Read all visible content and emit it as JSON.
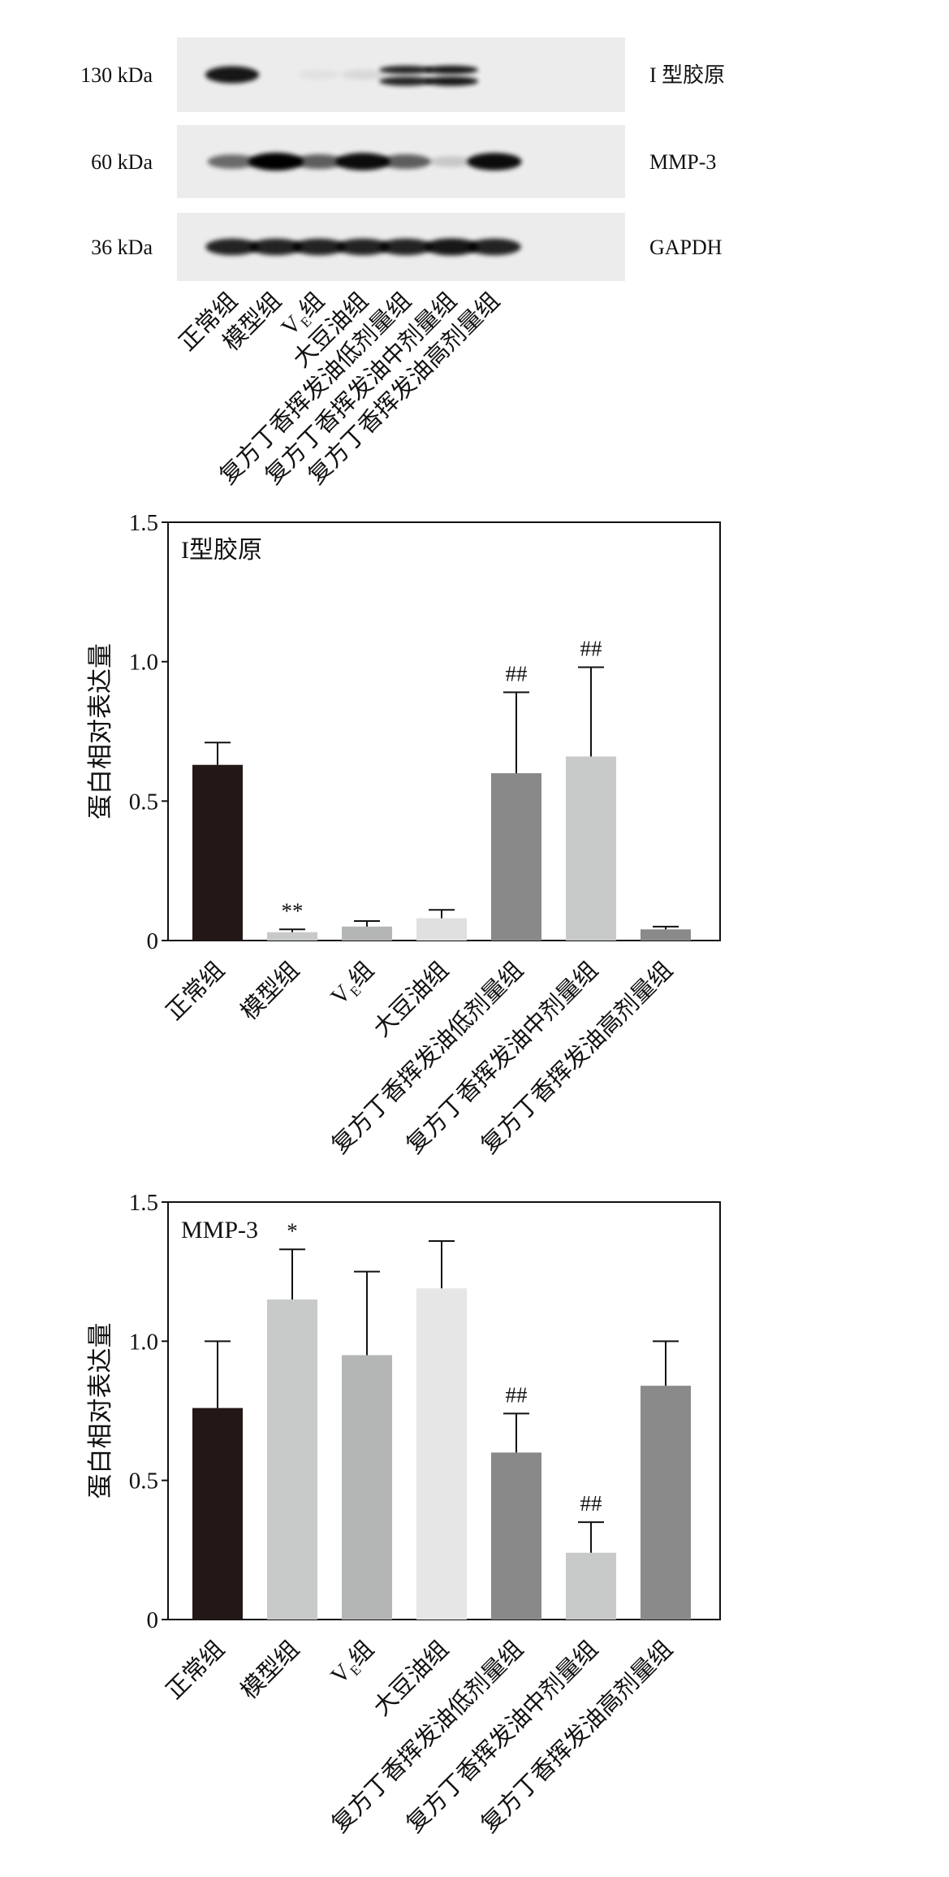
{
  "blot": {
    "rows": [
      {
        "marker": "130 kDa",
        "protein": "I 型胶原",
        "bands": [
          0.9,
          0,
          0.04,
          0.08,
          0.85,
          0.9,
          0
        ]
      },
      {
        "marker": "60 kDa",
        "protein": "MMP-3",
        "bands": [
          0.55,
          1.0,
          0.6,
          0.95,
          0.6,
          0.15,
          0.95
        ]
      },
      {
        "marker": "36 kDa",
        "protein": "GAPDH",
        "bands": [
          0.85,
          0.85,
          0.85,
          0.85,
          0.85,
          0.9,
          0.85
        ]
      }
    ],
    "lanes": [
      "正常组",
      "模型组",
      "V_E组",
      "大豆油组",
      "复方丁香挥发油低剂量组",
      "复方丁香挥发油中剂量组",
      "复方丁香挥发油高剂量组"
    ]
  },
  "chart_data": [
    {
      "type": "bar",
      "title": "I型胶原",
      "ylabel": "蛋白相对表达量",
      "ylim": [
        0,
        1.5
      ],
      "yticks": [
        "0",
        "0.5",
        "1.0",
        "1.5"
      ],
      "categories": [
        "正常组",
        "模型组",
        "V_E组",
        "大豆油组",
        "复方丁香挥发油低剂量组",
        "复方丁香挥发油中剂量组",
        "复方丁香挥发油高剂量组"
      ],
      "values": [
        0.63,
        0.03,
        0.05,
        0.08,
        0.6,
        0.66,
        0.04
      ],
      "errors": [
        0.08,
        0.01,
        0.02,
        0.03,
        0.29,
        0.32,
        0.01
      ],
      "annotations": [
        "",
        "**",
        "",
        "",
        "##",
        "##",
        ""
      ],
      "colors": [
        "#231816",
        "#c8c9c9",
        "#b4b5b5",
        "#dfe0df",
        "#898989",
        "#c8c9c9",
        "#8a8a8a"
      ]
    },
    {
      "type": "bar",
      "title": "MMP-3",
      "ylabel": "蛋白相对表达量",
      "ylim": [
        0,
        1.5
      ],
      "yticks": [
        "0",
        "0.5",
        "1.0",
        "1.5"
      ],
      "categories": [
        "正常组",
        "模型组",
        "V_E组",
        "大豆油组",
        "复方丁香挥发油低剂量组",
        "复方丁香挥发油中剂量组",
        "复方丁香挥发油高剂量组"
      ],
      "values": [
        0.76,
        1.15,
        0.95,
        1.19,
        0.6,
        0.24,
        0.84
      ],
      "errors": [
        0.24,
        0.18,
        0.3,
        0.17,
        0.14,
        0.11,
        0.16
      ],
      "annotations": [
        "",
        "*",
        "",
        "",
        "##",
        "##",
        ""
      ],
      "colors": [
        "#231816",
        "#c8c9c9",
        "#b4b5b5",
        "#e5e6e5",
        "#898989",
        "#c8c9c9",
        "#8a8a8a"
      ]
    }
  ]
}
